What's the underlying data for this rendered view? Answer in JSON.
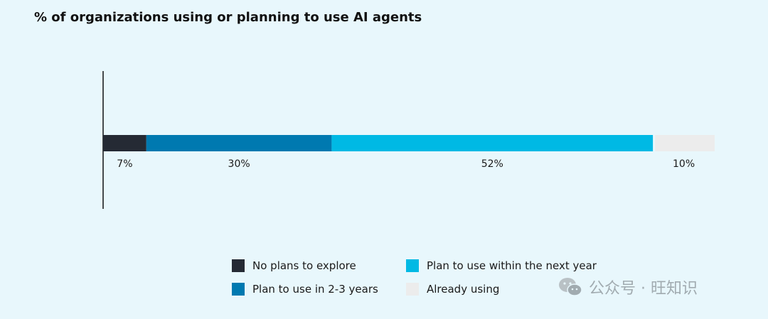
{
  "title": "% of organizations using or planning to use AI agents",
  "chart_data": {
    "type": "bar",
    "orientation": "horizontal",
    "stacked": true,
    "categories": [
      ""
    ],
    "series": [
      {
        "name": "No plans to explore",
        "values": [
          7
        ],
        "color": "#252a34"
      },
      {
        "name": "Plan to use in 2-3 years",
        "values": [
          30
        ],
        "color": "#0079b0"
      },
      {
        "name": "Plan to use within the next year",
        "values": [
          52
        ],
        "color": "#00b9e4"
      },
      {
        "name": "Already using",
        "values": [
          10
        ],
        "color": "#ececec"
      }
    ],
    "data_labels": [
      "7%",
      "30%",
      "52%",
      "10%"
    ],
    "legend_position": "bottom",
    "grid": false
  },
  "legend": [
    {
      "label": "No plans to explore",
      "color": "#252a34"
    },
    {
      "label": "Plan to use within the next year",
      "color": "#00b9e4"
    },
    {
      "label": "Plan to use in 2-3 years",
      "color": "#0079b0"
    },
    {
      "label": "Already using",
      "color": "#ececec"
    }
  ],
  "watermark": {
    "text": "公众号 · 旺知识",
    "icon": "wechat-icon"
  }
}
